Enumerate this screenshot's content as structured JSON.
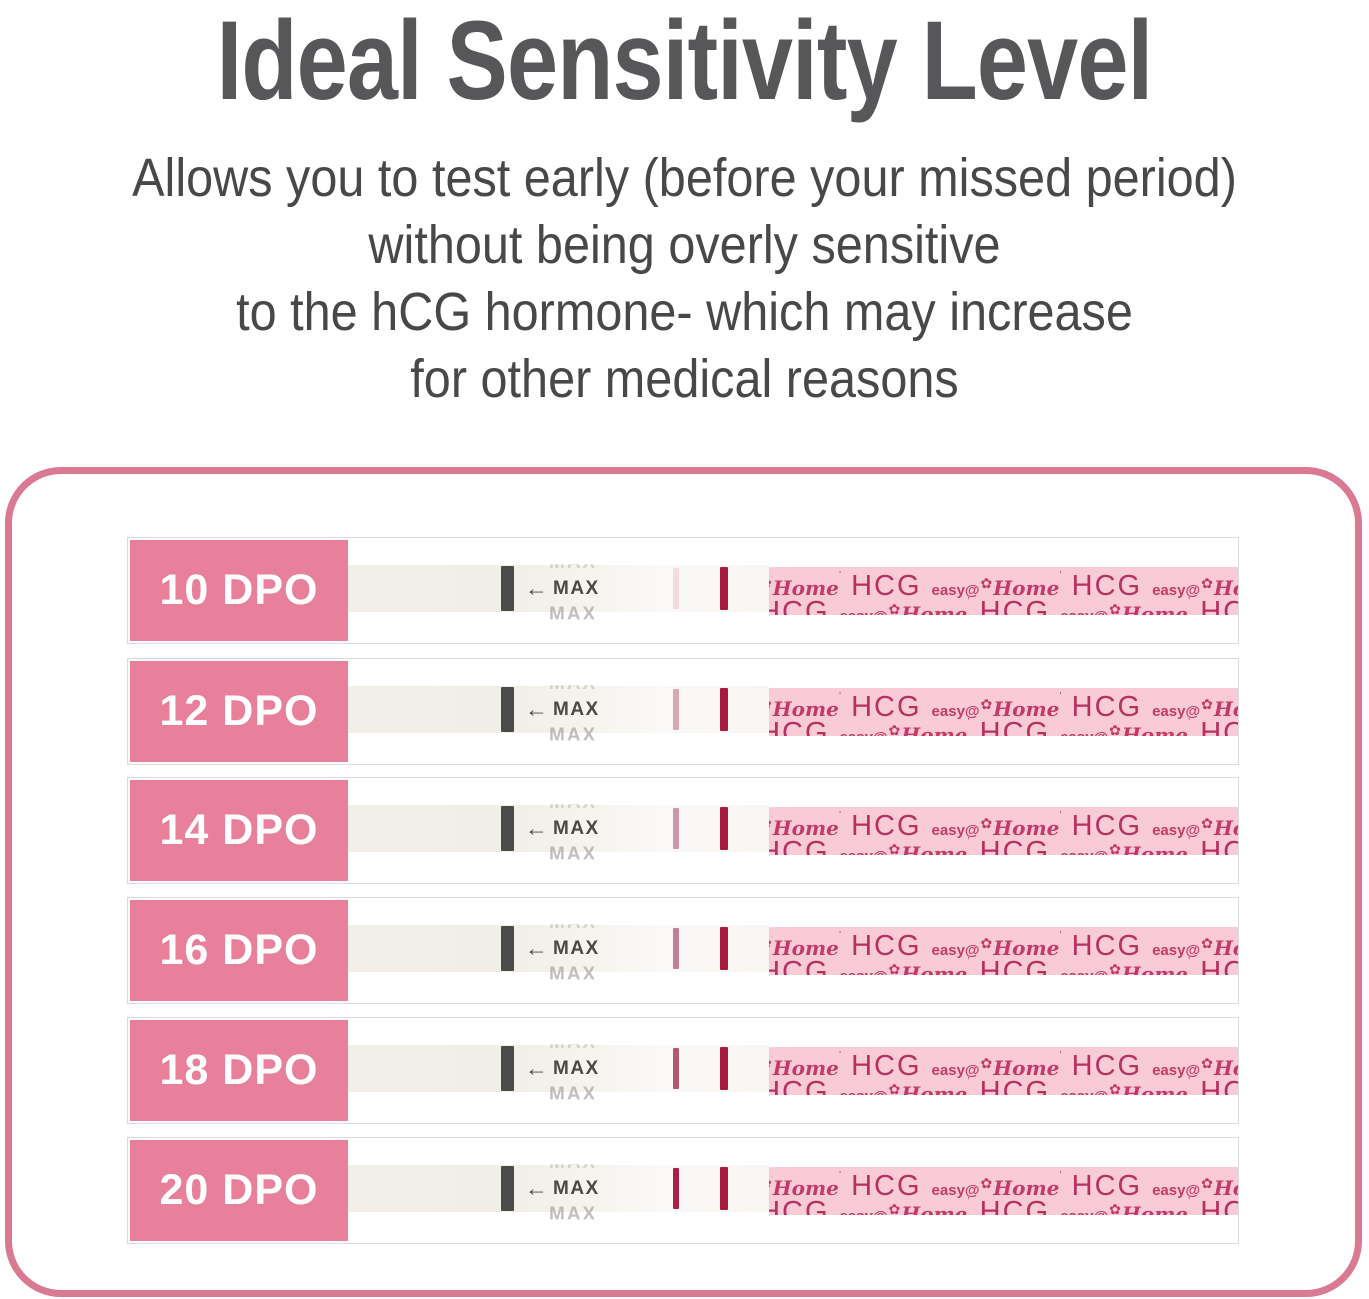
{
  "title": "Ideal Sensitivity Level",
  "subtitle_lines": [
    "Allows you to test early (before your missed period)",
    "without being overly sensitive",
    "to the hCG hormone- which may increase",
    "for other medical reasons"
  ],
  "max_marker": {
    "arrow": "←",
    "label": "MAX"
  },
  "brand": {
    "easy": "easy@",
    "flower": "✿",
    "home": "Home",
    "mark": "’",
    "hcg": "HCG",
    "repeat": 5
  },
  "colors": {
    "title_text": "#57575a",
    "subtitle_text": "#48484b",
    "panel_border": "#da7a92",
    "label_bg": "#e8809b",
    "label_text": "#ffffff",
    "pattern_bg": "#f9cbd7",
    "pattern_text": "#c33a6a",
    "pattern_hcg_text": "#b73062",
    "control_line": "#a51b42",
    "max_bar": "#4b4b49"
  },
  "strips": [
    {
      "label": "10 DPO",
      "test_line_color": "#f2dce2"
    },
    {
      "label": "12 DPO",
      "test_line_color": "#d7a9b7"
    },
    {
      "label": "14 DPO",
      "test_line_color": "#cd97a9"
    },
    {
      "label": "16 DPO",
      "test_line_color": "#c17e94"
    },
    {
      "label": "18 DPO",
      "test_line_color": "#b25873"
    },
    {
      "label": "20 DPO",
      "test_line_color": "#ae1d45"
    }
  ]
}
